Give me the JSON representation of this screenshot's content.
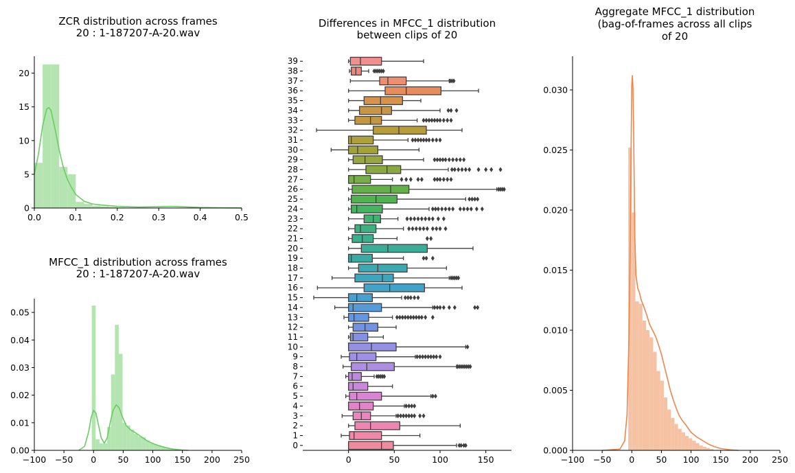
{
  "chart_data": [
    {
      "type": "histogram",
      "title_lines": [
        "ZCR distribution across frames",
        "20 : 1-187207-A-20.wav"
      ],
      "xlim": [
        0,
        0.5
      ],
      "ylim": [
        0,
        22.5
      ],
      "xticks": [
        0.0,
        0.1,
        0.2,
        0.3,
        0.4,
        0.5
      ],
      "xtick_labels": [
        "0.0",
        "0.1",
        "0.2",
        "0.3",
        "0.4",
        "0.5"
      ],
      "yticks": [
        0,
        5,
        10,
        15,
        20
      ],
      "ytick_labels": [
        "0",
        "5",
        "10",
        "15",
        "20"
      ],
      "bin_width": 0.02,
      "bins_start": 0.0,
      "bin_heights": [
        6.7,
        21.3,
        21.3,
        6.1,
        5.0,
        0.9,
        0.6,
        0.35,
        0.25,
        0.15,
        0.08,
        0.05,
        0.04,
        0.03,
        0.03,
        0.02,
        0.02,
        0.02,
        0.01,
        0.01,
        0.01,
        0.01,
        0.01,
        0.0,
        0.0
      ],
      "kde_x": [
        0.0,
        0.01,
        0.02,
        0.03,
        0.035,
        0.04,
        0.05,
        0.06,
        0.07,
        0.08,
        0.09,
        0.1,
        0.12,
        0.14,
        0.16,
        0.18,
        0.2,
        0.25,
        0.3,
        0.33,
        0.36,
        0.4,
        0.45,
        0.5
      ],
      "kde_y": [
        5.0,
        8.0,
        12.2,
        14.7,
        14.9,
        14.5,
        11.7,
        8.6,
        6.0,
        4.2,
        3.0,
        2.0,
        1.0,
        0.6,
        0.45,
        0.35,
        0.25,
        0.15,
        0.2,
        0.25,
        0.18,
        0.08,
        0.03,
        0.01
      ],
      "color": "#6acc64",
      "bar_color": "#b4e5b0"
    },
    {
      "type": "histogram",
      "title_lines": [
        "MFCC_1 distribution across frames",
        "20 : 1-187207-A-20.wav"
      ],
      "xlim": [
        -100,
        250
      ],
      "ylim": [
        0,
        0.055
      ],
      "xticks": [
        -100,
        -50,
        0,
        50,
        100,
        150,
        200,
        250
      ],
      "xtick_labels": [
        "−100",
        "−50",
        "0",
        "50",
        "100",
        "150",
        "200",
        "250"
      ],
      "yticks": [
        0,
        0.01,
        0.02,
        0.03,
        0.04,
        0.05
      ],
      "ytick_labels": [
        "0.00",
        "0.01",
        "0.02",
        "0.03",
        "0.04",
        "0.05"
      ],
      "bin_width": 6.5,
      "bins_start": -3,
      "bin_heights": [
        0.0525,
        0.004,
        0.0025,
        0.0025,
        0.0085,
        0.0275,
        0.0455,
        0.035,
        0.01,
        0.009,
        0.0075,
        0.006,
        0.005,
        0.0048,
        0.0036,
        0.0028,
        0.0022,
        0.0018,
        0.0014,
        0.0011,
        0.0008,
        0.0006,
        0.0003,
        0.0001
      ],
      "kde_x": [
        -25,
        -15,
        -8,
        -4,
        0,
        4,
        8,
        13,
        18,
        23,
        28,
        33,
        38,
        43,
        48,
        55,
        62,
        70,
        80,
        90,
        100,
        110,
        120,
        130,
        140,
        150,
        160
      ],
      "kde_y": [
        0.0,
        0.0015,
        0.007,
        0.012,
        0.0145,
        0.0135,
        0.0095,
        0.0045,
        0.0026,
        0.0045,
        0.01,
        0.0145,
        0.0165,
        0.0155,
        0.0125,
        0.009,
        0.0075,
        0.0065,
        0.005,
        0.0035,
        0.0025,
        0.0017,
        0.0011,
        0.0006,
        0.0003,
        0.0001,
        0.0
      ],
      "color": "#6acc64",
      "bar_color": "#b4e5b0"
    },
    {
      "type": "boxplot",
      "title_lines": [
        "Differences in MFCC_1 distribution",
        "between clips of 20"
      ],
      "orientation": "horizontal",
      "xlim": [
        -50,
        178
      ],
      "xticks": [
        0,
        50,
        100,
        150
      ],
      "xtick_labels": [
        "0",
        "50",
        "100",
        "150"
      ],
      "categories": [
        "39",
        "38",
        "37",
        "36",
        "35",
        "34",
        "33",
        "32",
        "31",
        "30",
        "29",
        "28",
        "27",
        "26",
        "25",
        "24",
        "23",
        "22",
        "21",
        "20",
        "19",
        "18",
        "17",
        "16",
        "15",
        "14",
        "13",
        "12",
        "11",
        "10",
        "9",
        "8",
        "7",
        "6",
        "5",
        "4",
        "3",
        "2",
        "1",
        "0"
      ],
      "boxes": [
        {
          "wl": 0,
          "q1": 2,
          "med": 13,
          "q3": 36,
          "wh": 82,
          "out": []
        },
        {
          "wl": 1,
          "q1": 3,
          "med": 8,
          "q3": 14,
          "wh": 22,
          "out": [
            28,
            30,
            32,
            34,
            36,
            38
          ]
        },
        {
          "wl": 2,
          "q1": 34,
          "med": 43,
          "q3": 63,
          "wh": 110,
          "out": [
            111,
            113,
            115
          ]
        },
        {
          "wl": 0,
          "q1": 40,
          "med": 63,
          "q3": 101,
          "wh": 142,
          "out": []
        },
        {
          "wl": 0,
          "q1": 17,
          "med": 35,
          "q3": 59,
          "wh": 79,
          "out": []
        },
        {
          "wl": 0,
          "q1": 12,
          "med": 36,
          "q3": 47,
          "wh": 100,
          "out": [
            109,
            112,
            118
          ]
        },
        {
          "wl": 0,
          "q1": 7,
          "med": 24,
          "q3": 36,
          "wh": 75,
          "out": [
            82,
            85,
            88,
            91,
            94,
            97,
            100,
            104,
            108,
            112
          ]
        },
        {
          "wl": -35,
          "q1": 27,
          "med": 55,
          "q3": 85,
          "wh": 124,
          "out": []
        },
        {
          "wl": 0,
          "q1": 0,
          "med": 3,
          "q3": 27,
          "wh": 65,
          "out": [
            70,
            73,
            76,
            79,
            82,
            85,
            88,
            92,
            96,
            100
          ]
        },
        {
          "wl": -19,
          "q1": 0,
          "med": 10,
          "q3": 32,
          "wh": 77,
          "out": []
        },
        {
          "wl": 0,
          "q1": 5,
          "med": 18,
          "q3": 37,
          "wh": 82,
          "out": [
            94,
            97,
            100,
            103,
            106,
            110,
            114,
            118,
            122,
            126
          ]
        },
        {
          "wl": 0,
          "q1": 19,
          "med": 42,
          "q3": 57,
          "wh": 109,
          "out": [
            113,
            116,
            120,
            124,
            128,
            132,
            142,
            150,
            156,
            166
          ]
        },
        {
          "wl": 0,
          "q1": 0,
          "med": 6,
          "q3": 24,
          "wh": 48,
          "out": [
            58,
            63,
            68,
            76,
            80,
            94,
            97,
            100,
            104,
            108,
            112
          ]
        },
        {
          "wl": 0,
          "q1": 4,
          "med": 46,
          "q3": 66,
          "wh": 162,
          "out": [
            164,
            166,
            168,
            170
          ]
        },
        {
          "wl": 0,
          "q1": 3,
          "med": 30,
          "q3": 53,
          "wh": 128,
          "out": [
            132,
            135,
            138,
            141
          ]
        },
        {
          "wl": 0,
          "q1": 3,
          "med": 9,
          "q3": 37,
          "wh": 88,
          "out": [
            92,
            95,
            98,
            102,
            106,
            110,
            114,
            122,
            126,
            130,
            134,
            140,
            146
          ]
        },
        {
          "wl": 0,
          "q1": 17,
          "med": 27,
          "q3": 35,
          "wh": 54,
          "out": [
            64,
            68,
            72,
            76,
            80,
            84,
            88,
            92,
            98,
            104
          ]
        },
        {
          "wl": 0,
          "q1": 7,
          "med": 13,
          "q3": 30,
          "wh": 60,
          "out": [
            66,
            70,
            74,
            78,
            82,
            86,
            92,
            96,
            100,
            106
          ]
        },
        {
          "wl": 0,
          "q1": 4,
          "med": 15,
          "q3": 27,
          "wh": 53,
          "out": [
            86,
            90
          ]
        },
        {
          "wl": 0,
          "q1": 14,
          "med": 43,
          "q3": 86,
          "wh": 136,
          "out": []
        },
        {
          "wl": 0,
          "q1": 0,
          "med": 3,
          "q3": 26,
          "wh": 60,
          "out": [
            82,
            85,
            92
          ]
        },
        {
          "wl": 0,
          "q1": 11,
          "med": 32,
          "q3": 64,
          "wh": 107,
          "out": []
        },
        {
          "wl": -18,
          "q1": 7,
          "med": 37,
          "q3": 49,
          "wh": 110,
          "out": [
            112,
            114,
            116,
            118,
            120
          ]
        },
        {
          "wl": -34,
          "q1": 17,
          "med": 45,
          "q3": 83,
          "wh": 124,
          "out": []
        },
        {
          "wl": -38,
          "q1": 0,
          "med": 9,
          "q3": 26,
          "wh": 58,
          "out": [
            62,
            65,
            68,
            72,
            76
          ]
        },
        {
          "wl": -15,
          "q1": 0,
          "med": 5,
          "q3": 36,
          "wh": 92,
          "out": [
            94,
            97,
            100,
            104,
            110,
            116,
            138,
            141
          ]
        },
        {
          "wl": -5,
          "q1": 0,
          "med": 6,
          "q3": 22,
          "wh": 48,
          "out": [
            53,
            56,
            59,
            62,
            65,
            68,
            71,
            74,
            77,
            80,
            84,
            92
          ]
        },
        {
          "wl": 0,
          "q1": 5,
          "med": 18,
          "q3": 32,
          "wh": 52,
          "out": []
        },
        {
          "wl": 0,
          "q1": 2,
          "med": 5,
          "q3": 21,
          "wh": 38,
          "out": []
        },
        {
          "wl": 0,
          "q1": 0,
          "med": 25,
          "q3": 52,
          "wh": 128,
          "out": [
            130
          ]
        },
        {
          "wl": -8,
          "q1": 1,
          "med": 9,
          "q3": 30,
          "wh": 73,
          "out": [
            75,
            78,
            81,
            84,
            87,
            90,
            93,
            96,
            100
          ]
        },
        {
          "wl": -6,
          "q1": 3,
          "med": 20,
          "q3": 50,
          "wh": 118,
          "out": [
            119,
            121,
            123,
            125,
            127,
            129,
            131,
            133
          ]
        },
        {
          "wl": -3,
          "q1": 0,
          "med": 4,
          "q3": 14,
          "wh": 28,
          "out": [
            31,
            33,
            35,
            37,
            39
          ]
        },
        {
          "wl": 0,
          "q1": 0,
          "med": 5,
          "q3": 21,
          "wh": 48,
          "out": []
        },
        {
          "wl": -3,
          "q1": 1,
          "med": 9,
          "q3": 36,
          "wh": 90,
          "out": [
            92,
            95
          ]
        },
        {
          "wl": 0,
          "q1": 0,
          "med": 12,
          "q3": 27,
          "wh": 61,
          "out": [
            63,
            66,
            69,
            72
          ]
        },
        {
          "wl": -7,
          "q1": 5,
          "med": 14,
          "q3": 24,
          "wh": 52,
          "out": [
            54,
            57,
            60,
            63,
            66,
            69,
            72,
            78,
            82
          ]
        },
        {
          "wl": 0,
          "q1": 7,
          "med": 24,
          "q3": 56,
          "wh": 122,
          "out": []
        },
        {
          "wl": -8,
          "q1": 1,
          "med": 6,
          "q3": 36,
          "wh": 78,
          "out": []
        },
        {
          "wl": 0,
          "q1": 0,
          "med": 36,
          "q3": 49,
          "wh": 118,
          "out": [
            121,
            123,
            126,
            128
          ]
        }
      ],
      "colors": [
        "#f28e8c",
        "#f0877c",
        "#ee8d6f",
        "#e98c5c",
        "#d7934a",
        "#c99547",
        "#c2973f",
        "#b89c39",
        "#aea03a",
        "#a3a33c",
        "#98a641",
        "#89aa42",
        "#77ae45",
        "#62b247",
        "#4fb44f",
        "#44b460",
        "#3fb370",
        "#3cb17f",
        "#3aaf8c",
        "#39ad98",
        "#3aaba4",
        "#3ca9b0",
        "#3ea6bc",
        "#41a3c7",
        "#47a0d0",
        "#559bd9",
        "#6596e0",
        "#7492e4",
        "#8390e5",
        "#9390e6",
        "#a08fe6",
        "#ae8ee3",
        "#bd8ade",
        "#cb88d8",
        "#d886d1",
        "#e384c9",
        "#ea85bf",
        "#ee86b4",
        "#f088a9",
        "#f08b9d"
      ],
      "line_color": "#3f3f3f"
    },
    {
      "type": "histogram",
      "title_lines": [
        "Aggregate MFCC_1 distribution",
        "(bag-of-frames across all clips",
        "of 20"
      ],
      "xlim": [
        -100,
        250
      ],
      "ylim": [
        0,
        0.0328
      ],
      "xticks": [
        -100,
        -50,
        0,
        50,
        100,
        150,
        200,
        250
      ],
      "xtick_labels": [
        "−100",
        "−50",
        "0",
        "50",
        "100",
        "150",
        "200",
        "250"
      ],
      "yticks": [
        0,
        0.005,
        0.01,
        0.015,
        0.02,
        0.025,
        0.03
      ],
      "ytick_labels": [
        "0.000",
        "0.005",
        "0.010",
        "0.015",
        "0.020",
        "0.025",
        "0.030"
      ],
      "bin_width": 6,
      "bins_start": -6,
      "bin_heights": [
        0.0252,
        0.0198,
        0.0124,
        0.0122,
        0.0108,
        0.01,
        0.0094,
        0.0082,
        0.0066,
        0.0058,
        0.0044,
        0.0034,
        0.0027,
        0.0022,
        0.0018,
        0.0015,
        0.0012,
        0.001,
        0.0008,
        0.0006,
        0.0004,
        0.0003,
        0.0002,
        0.0001
      ],
      "kde_x": [
        -50,
        -20,
        -12,
        -8,
        -5,
        -3,
        -1,
        0,
        1,
        2,
        3,
        4,
        5,
        7,
        10,
        13,
        16,
        20,
        25,
        30,
        35,
        40,
        45,
        50,
        55,
        60,
        65,
        70,
        75,
        80,
        85,
        90,
        100,
        110,
        120,
        130,
        140,
        150,
        165,
        180
      ],
      "kde_y": [
        0.0,
        0.0001,
        0.0008,
        0.003,
        0.009,
        0.016,
        0.026,
        0.0305,
        0.0312,
        0.0302,
        0.027,
        0.0225,
        0.018,
        0.0146,
        0.0135,
        0.0131,
        0.0125,
        0.012,
        0.0113,
        0.0105,
        0.01,
        0.0095,
        0.0088,
        0.008,
        0.007,
        0.006,
        0.005,
        0.0042,
        0.0035,
        0.0029,
        0.0025,
        0.0022,
        0.0015,
        0.0011,
        0.0008,
        0.0005,
        0.0003,
        0.00015,
        5e-05,
        0.0
      ],
      "color": "#ee854a",
      "bar_color": "#f5c3a3"
    }
  ]
}
